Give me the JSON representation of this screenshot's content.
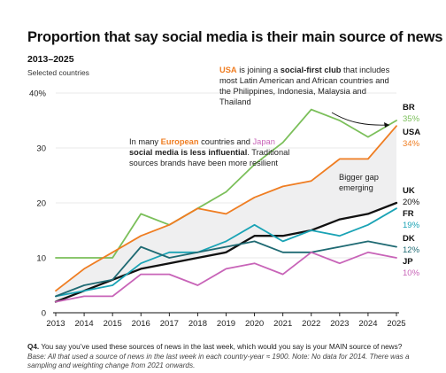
{
  "title": "Proportion that say social media is their main source of news",
  "subtitle": "2013–2025",
  "subtitle2": "Selected countries",
  "colors": {
    "BR": "#7bbf5a",
    "USA": "#ef7d22",
    "UK": "#111111",
    "FR": "#1aa3b5",
    "DK": "#1f6a73",
    "JP": "#c864b8",
    "band": "#efeff0",
    "grid": "#e3e3e3",
    "european": "#ef7d22",
    "japan": "#c864b8"
  },
  "annotations": {
    "usa": {
      "pre": "USA",
      "mid1": " is joining a ",
      "bold": "social-first club",
      "mid2": " that includes",
      "line2": "most Latin American and African countries and",
      "line3": "the Philippines, Indonesia, Malaysia and",
      "line4": "Thailand"
    },
    "europe": {
      "l1a": "In many ",
      "l1b": "European",
      "l1c": " countries and ",
      "l1d": "Japan",
      "line2": "social media is less influential",
      "line2b": ". Traditional",
      "line3": "sources brands have been more resilient"
    },
    "gap": {
      "line1": "Bigger gap",
      "line2": "emerging"
    }
  },
  "note": {
    "question_label": "Q4.",
    "question": " You say you’ve used these sources of news in the last week, which would you say is your MAIN source of news?",
    "base": "Base: All that used a source of news in the last week in each country-year ≈ 1900. Note: No data for 2014. There was a sampling and weighting change from 2021 onwards."
  },
  "chart_data": {
    "type": "line",
    "x": [
      2013,
      2014,
      2015,
      2016,
      2017,
      2018,
      2019,
      2020,
      2021,
      2022,
      2023,
      2024,
      2025
    ],
    "xticks": [
      "2013",
      "2014",
      "2015",
      "2016",
      "2017",
      "2018",
      "2019",
      "2020",
      "2021",
      "2022",
      "2023",
      "2024",
      "2025"
    ],
    "ylim": [
      0,
      40
    ],
    "yticks": [
      0,
      10,
      20,
      30,
      40
    ],
    "ytick_labels": [
      "0",
      "10",
      "20",
      "30",
      "40%"
    ],
    "grid": true,
    "series": [
      {
        "name": "BR",
        "key": "BR",
        "end_label": "35%",
        "values": [
          10,
          10,
          10,
          18,
          16,
          19,
          22,
          27,
          31,
          37,
          35,
          32,
          35
        ]
      },
      {
        "name": "USA",
        "key": "USA",
        "end_label": "34%",
        "values": [
          4,
          8,
          11,
          14,
          16,
          19,
          18,
          21,
          23,
          24,
          28,
          28,
          34
        ]
      },
      {
        "name": "UK",
        "key": "UK",
        "end_label": "20%",
        "values": [
          2,
          4,
          6,
          8,
          9,
          10,
          11,
          14,
          14,
          15,
          17,
          18,
          20
        ]
      },
      {
        "name": "FR",
        "key": "FR",
        "end_label": "19%",
        "values": [
          3,
          4,
          5,
          9,
          11,
          11,
          13,
          16,
          13,
          15,
          14,
          16,
          19
        ]
      },
      {
        "name": "DK",
        "key": "DK",
        "end_label": "12%",
        "values": [
          3,
          5,
          6,
          12,
          10,
          11,
          12,
          13,
          11,
          11,
          12,
          13,
          12
        ]
      },
      {
        "name": "JP",
        "key": "JP",
        "end_label": "10%",
        "values": [
          2,
          3,
          3,
          7,
          7,
          5,
          8,
          9,
          7,
          11,
          9,
          11,
          10
        ]
      }
    ],
    "band_between": [
      "USA",
      "UK"
    ]
  }
}
